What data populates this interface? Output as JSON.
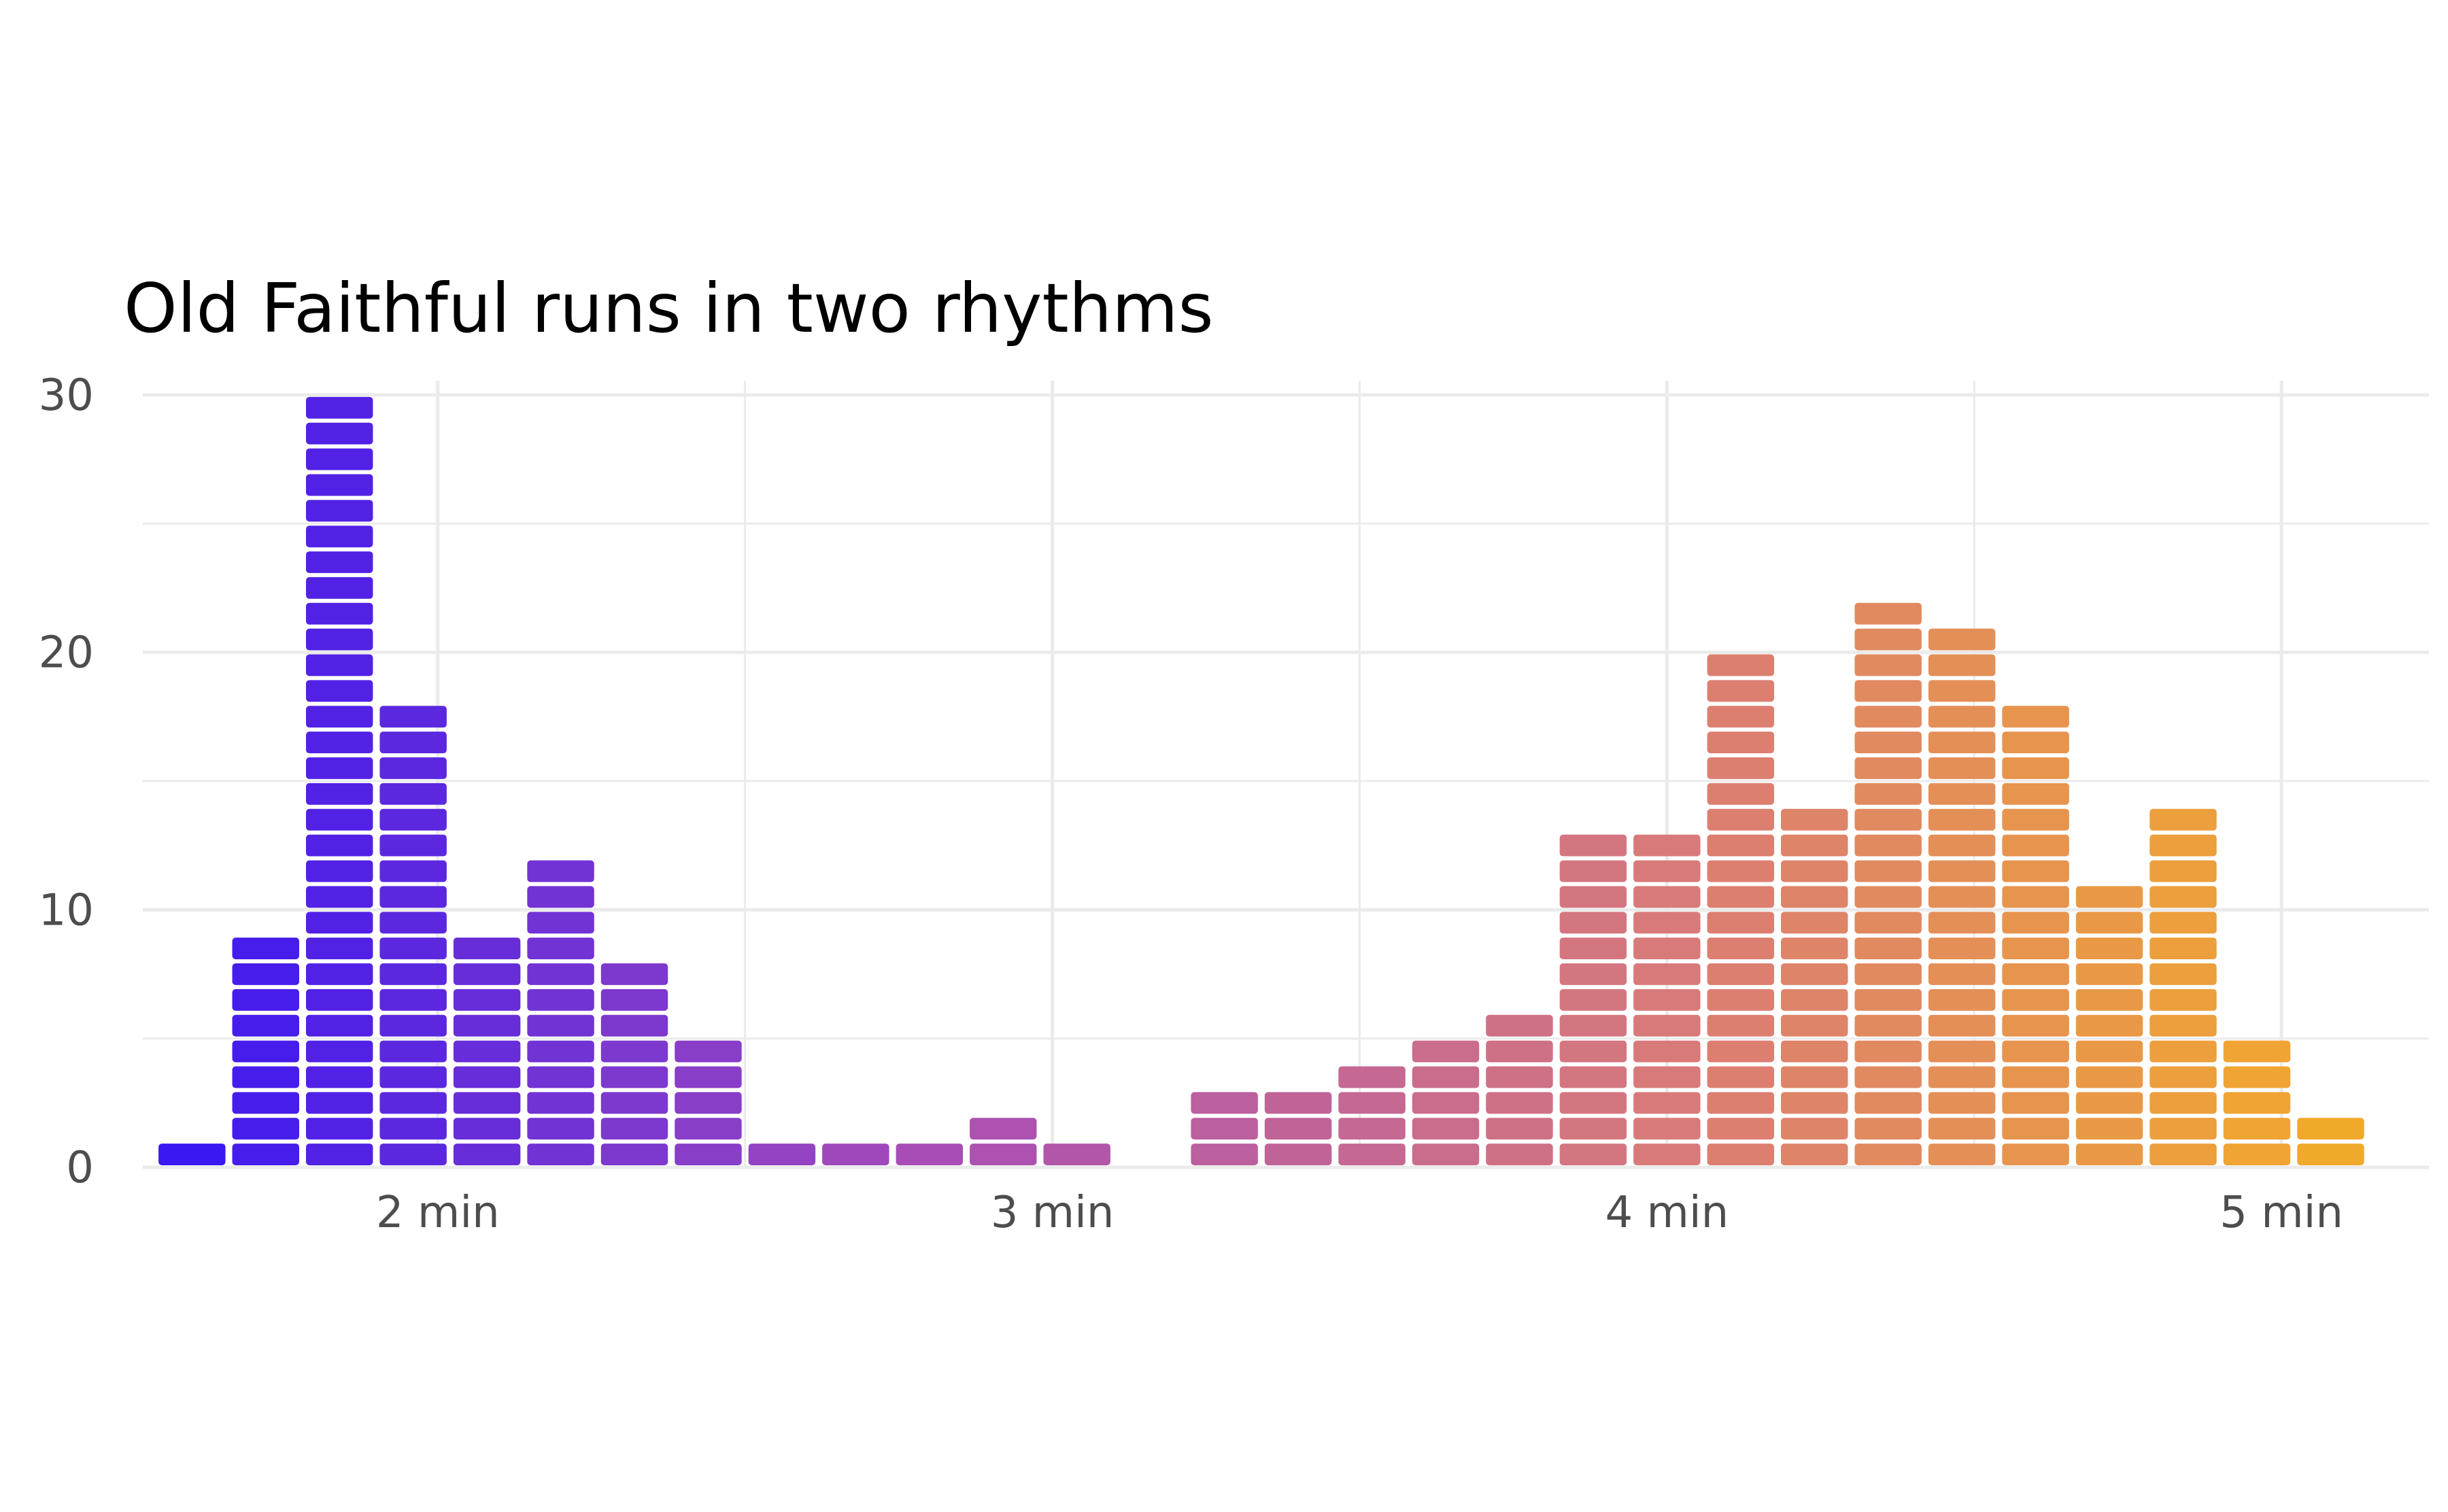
{
  "chart_data": {
    "type": "bar",
    "title": "Old Faithful runs in two rhythms",
    "xlabel": "",
    "ylabel": "",
    "x_unit_suffix": " min",
    "x_ticks": [
      2,
      3,
      4,
      5
    ],
    "x_tick_labels": [
      "2 min",
      "3 min",
      "4 min",
      "5 min"
    ],
    "y_ticks": [
      0,
      10,
      20,
      30
    ],
    "y_tick_labels": [
      "0",
      "10",
      "20",
      "30"
    ],
    "xlim": [
      1.52,
      5.24
    ],
    "ylim": [
      0,
      30
    ],
    "bin_width": 0.12,
    "bin_centers": [
      1.6,
      1.72,
      1.84,
      1.96,
      2.08,
      2.2,
      2.32,
      2.44,
      2.56,
      2.68,
      2.8,
      2.92,
      3.04,
      3.16,
      3.28,
      3.4,
      3.52,
      3.64,
      3.76,
      3.88,
      4.0,
      4.12,
      4.24,
      4.36,
      4.48,
      4.6,
      4.72,
      4.84,
      4.96,
      5.08
    ],
    "values": [
      1,
      9,
      30,
      18,
      9,
      12,
      8,
      5,
      1,
      1,
      1,
      2,
      1,
      0,
      3,
      3,
      4,
      5,
      6,
      13,
      13,
      20,
      14,
      22,
      21,
      18,
      11,
      14,
      5,
      2
    ],
    "unit_style": "stacked rounded blocks, one block per eruption",
    "color_gradient": [
      "#3314f5",
      "#a64cb8",
      "#d97a7a",
      "#f5b01f"
    ],
    "grid": true,
    "legend": "none"
  }
}
